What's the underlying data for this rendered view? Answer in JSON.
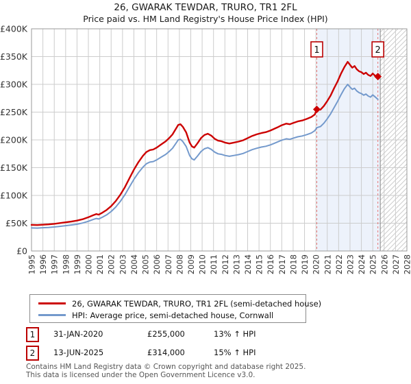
{
  "title": "26, GWARAK TEWDAR, TRURO, TR1 2FL",
  "subtitle": "Price paid vs. HM Land Registry's House Price Index (HPI)",
  "colors": {
    "property": "#cc0000",
    "hpi": "#7399cc",
    "marker_line": "#e57373",
    "marker_box_border": "#bb0000",
    "diamond": "#cc0000",
    "grid": "#cccccc",
    "plot_border": "#999999",
    "shade": "#edf2fb",
    "hatch": "#cccccc",
    "hatch_edge": "#888888",
    "tick_text": "#333333"
  },
  "chart_data": {
    "type": "line",
    "title": "26, GWARAK TEWDAR, TRURO, TR1 2FL",
    "subtitle": "Price paid vs. HM Land Registry's House Price Index (HPI)",
    "x_axis": {
      "range": [
        1995,
        2028
      ],
      "ticks": [
        "1995",
        "1996",
        "1997",
        "1998",
        "1999",
        "2000",
        "2001",
        "2002",
        "2003",
        "2004",
        "2005",
        "2006",
        "2007",
        "2008",
        "2009",
        "2010",
        "2011",
        "2012",
        "2013",
        "2014",
        "2015",
        "2016",
        "2017",
        "2018",
        "2019",
        "2020",
        "2021",
        "2022",
        "2023",
        "2024",
        "2025",
        "2026",
        "2027",
        "2028"
      ]
    },
    "y_axis": {
      "unit": "£1000s",
      "range": [
        0,
        400
      ],
      "ticks": [
        {
          "label": "£0",
          "v": 0
        },
        {
          "label": "£50K",
          "v": 50
        },
        {
          "label": "£100K",
          "v": 100
        },
        {
          "label": "£150K",
          "v": 150
        },
        {
          "label": "£200K",
          "v": 200
        },
        {
          "label": "£250K",
          "v": 250
        },
        {
          "label": "£300K",
          "v": 300
        },
        {
          "label": "£350K",
          "v": 350
        },
        {
          "label": "£400K",
          "v": 400
        }
      ]
    },
    "grid": true,
    "legend_position": "below",
    "shaded_span": [
      2020.08,
      2025.66
    ],
    "hatched_span": [
      2025.66,
      2028
    ],
    "series": [
      {
        "key": "hpi-line",
        "name": "HPI: Average price, semi-detached house, Cornwall",
        "color": "#7399cc",
        "width": 2,
        "points": [
          [
            1995.0,
            41.5
          ],
          [
            1995.5,
            41.2
          ],
          [
            1996.0,
            41.8
          ],
          [
            1996.5,
            42.3
          ],
          [
            1997.0,
            43.2
          ],
          [
            1997.5,
            44.3
          ],
          [
            1998.0,
            45.6
          ],
          [
            1998.5,
            46.8
          ],
          [
            1999.0,
            48.2
          ],
          [
            1999.5,
            50.4
          ],
          [
            2000.0,
            53.5
          ],
          [
            2000.4,
            56.5
          ],
          [
            2000.7,
            58.5
          ],
          [
            2000.9,
            57.5
          ],
          [
            2001.2,
            60.5
          ],
          [
            2001.6,
            65
          ],
          [
            2002.0,
            71
          ],
          [
            2002.4,
            79
          ],
          [
            2002.8,
            89
          ],
          [
            2003.2,
            101
          ],
          [
            2003.6,
            115
          ],
          [
            2004.0,
            129
          ],
          [
            2004.4,
            141
          ],
          [
            2004.8,
            151
          ],
          [
            2005.1,
            157
          ],
          [
            2005.4,
            160
          ],
          [
            2005.7,
            161
          ],
          [
            2006.0,
            164
          ],
          [
            2006.4,
            169
          ],
          [
            2006.8,
            174
          ],
          [
            2007.1,
            179
          ],
          [
            2007.4,
            185
          ],
          [
            2007.7,
            194
          ],
          [
            2007.9,
            200
          ],
          [
            2008.1,
            201
          ],
          [
            2008.3,
            197
          ],
          [
            2008.6,
            188
          ],
          [
            2008.9,
            172
          ],
          [
            2009.1,
            166
          ],
          [
            2009.3,
            164
          ],
          [
            2009.6,
            171
          ],
          [
            2009.9,
            179
          ],
          [
            2010.2,
            184
          ],
          [
            2010.5,
            186
          ],
          [
            2010.8,
            183
          ],
          [
            2011.1,
            178
          ],
          [
            2011.4,
            175
          ],
          [
            2011.7,
            174
          ],
          [
            2012.0,
            172
          ],
          [
            2012.4,
            170.5
          ],
          [
            2012.8,
            172
          ],
          [
            2013.2,
            173.5
          ],
          [
            2013.6,
            175.5
          ],
          [
            2014.0,
            179
          ],
          [
            2014.4,
            182.5
          ],
          [
            2014.8,
            185
          ],
          [
            2015.2,
            187
          ],
          [
            2015.6,
            188.5
          ],
          [
            2016.0,
            191
          ],
          [
            2016.3,
            193.5
          ],
          [
            2016.6,
            196
          ],
          [
            2017.0,
            199.5
          ],
          [
            2017.4,
            202
          ],
          [
            2017.7,
            201
          ],
          [
            2018.0,
            203
          ],
          [
            2018.4,
            205.5
          ],
          [
            2018.8,
            207
          ],
          [
            2019.2,
            209.5
          ],
          [
            2019.6,
            212.5
          ],
          [
            2019.9,
            216.5
          ],
          [
            2020.08,
            222
          ],
          [
            2020.4,
            224
          ],
          [
            2020.7,
            230
          ],
          [
            2021.0,
            238
          ],
          [
            2021.3,
            247
          ],
          [
            2021.6,
            258
          ],
          [
            2021.9,
            269
          ],
          [
            2022.2,
            281
          ],
          [
            2022.5,
            292
          ],
          [
            2022.8,
            300
          ],
          [
            2023.0,
            295
          ],
          [
            2023.2,
            291
          ],
          [
            2023.4,
            293
          ],
          [
            2023.6,
            288
          ],
          [
            2023.8,
            285
          ],
          [
            2024.0,
            283.5
          ],
          [
            2024.2,
            280.5
          ],
          [
            2024.4,
            282.5
          ],
          [
            2024.6,
            279
          ],
          [
            2024.8,
            277
          ],
          [
            2025.0,
            281
          ],
          [
            2025.2,
            277.5
          ],
          [
            2025.45,
            273
          ]
        ]
      },
      {
        "key": "property-price-line",
        "name": "26, GWARAK TEWDAR, TRURO, TR1 2FL (semi-detached house)",
        "color": "#cc0000",
        "width": 2.4,
        "points": [
          [
            1995.0,
            47
          ],
          [
            1995.5,
            46.7
          ],
          [
            1996.0,
            47.3
          ],
          [
            1996.5,
            47.9
          ],
          [
            1997.0,
            48.9
          ],
          [
            1997.5,
            50.2
          ],
          [
            1998.0,
            51.6
          ],
          [
            1998.5,
            53
          ],
          [
            1999.0,
            54.7
          ],
          [
            1999.5,
            57.2
          ],
          [
            2000.0,
            60.7
          ],
          [
            2000.4,
            64.2
          ],
          [
            2000.7,
            66.5
          ],
          [
            2000.9,
            65.3
          ],
          [
            2001.2,
            68.7
          ],
          [
            2001.6,
            73.8
          ],
          [
            2002.0,
            80.6
          ],
          [
            2002.4,
            89.7
          ],
          [
            2002.8,
            101
          ],
          [
            2003.2,
            114.6
          ],
          [
            2003.6,
            130.5
          ],
          [
            2004.0,
            146.4
          ],
          [
            2004.4,
            160
          ],
          [
            2004.8,
            171.4
          ],
          [
            2005.1,
            178.2
          ],
          [
            2005.4,
            181.6
          ],
          [
            2005.7,
            182.7
          ],
          [
            2006.0,
            186.1
          ],
          [
            2006.4,
            191.8
          ],
          [
            2006.8,
            197.5
          ],
          [
            2007.1,
            203.2
          ],
          [
            2007.4,
            210
          ],
          [
            2007.7,
            220.2
          ],
          [
            2007.9,
            227
          ],
          [
            2008.1,
            228.1
          ],
          [
            2008.3,
            223.6
          ],
          [
            2008.6,
            213.4
          ],
          [
            2008.9,
            195.2
          ],
          [
            2009.1,
            188.4
          ],
          [
            2009.3,
            186.1
          ],
          [
            2009.6,
            194.1
          ],
          [
            2009.9,
            203.2
          ],
          [
            2010.2,
            208.8
          ],
          [
            2010.5,
            211.1
          ],
          [
            2010.8,
            207.7
          ],
          [
            2011.1,
            202
          ],
          [
            2011.4,
            198.6
          ],
          [
            2011.7,
            197.5
          ],
          [
            2012.0,
            195.2
          ],
          [
            2012.4,
            193.5
          ],
          [
            2012.8,
            195.2
          ],
          [
            2013.2,
            196.9
          ],
          [
            2013.6,
            199.2
          ],
          [
            2014.0,
            203.2
          ],
          [
            2014.4,
            207.1
          ],
          [
            2014.8,
            210
          ],
          [
            2015.2,
            212.2
          ],
          [
            2015.6,
            213.9
          ],
          [
            2016.0,
            216.8
          ],
          [
            2016.3,
            219.6
          ],
          [
            2016.6,
            222.4
          ],
          [
            2017.0,
            226.4
          ],
          [
            2017.4,
            229.3
          ],
          [
            2017.7,
            228.1
          ],
          [
            2018.0,
            230.4
          ],
          [
            2018.4,
            233.2
          ],
          [
            2018.8,
            234.9
          ],
          [
            2019.2,
            237.8
          ],
          [
            2019.6,
            241.2
          ],
          [
            2019.9,
            245.7
          ],
          [
            2020.08,
            255
          ],
          [
            2020.4,
            254.5
          ],
          [
            2020.7,
            261
          ],
          [
            2021.0,
            270
          ],
          [
            2021.3,
            280
          ],
          [
            2021.6,
            293
          ],
          [
            2021.9,
            305
          ],
          [
            2022.2,
            319
          ],
          [
            2022.5,
            331
          ],
          [
            2022.8,
            340.5
          ],
          [
            2023.0,
            335
          ],
          [
            2023.2,
            330
          ],
          [
            2023.4,
            333
          ],
          [
            2023.6,
            327
          ],
          [
            2023.8,
            323.5
          ],
          [
            2024.0,
            322
          ],
          [
            2024.2,
            318.5
          ],
          [
            2024.4,
            321
          ],
          [
            2024.6,
            317
          ],
          [
            2024.8,
            315
          ],
          [
            2025.0,
            319.5
          ],
          [
            2025.2,
            315.5
          ],
          [
            2025.45,
            314
          ]
        ]
      }
    ],
    "markers": [
      {
        "label": "1",
        "x": 2020.08,
        "value": 255
      },
      {
        "label": "2",
        "x": 2025.45,
        "value": 314
      }
    ]
  },
  "legend": {
    "items": [
      {
        "label": "26, GWARAK TEWDAR, TRURO, TR1 2FL (semi-detached house)",
        "color": "#cc0000"
      },
      {
        "label": "HPI: Average price, semi-detached house, Cornwall",
        "color": "#7399cc"
      }
    ]
  },
  "transactions": [
    {
      "n": "1",
      "date": "31-JAN-2020",
      "price": "£255,000",
      "hpi_delta": "13% ↑ HPI"
    },
    {
      "n": "2",
      "date": "13-JUN-2025",
      "price": "£314,000",
      "hpi_delta": "15% ↑ HPI"
    }
  ],
  "footer": {
    "line1": "Contains HM Land Registry data © Crown copyright and database right 2025.",
    "line2": "This data is licensed under the Open Government Licence v3.0."
  }
}
